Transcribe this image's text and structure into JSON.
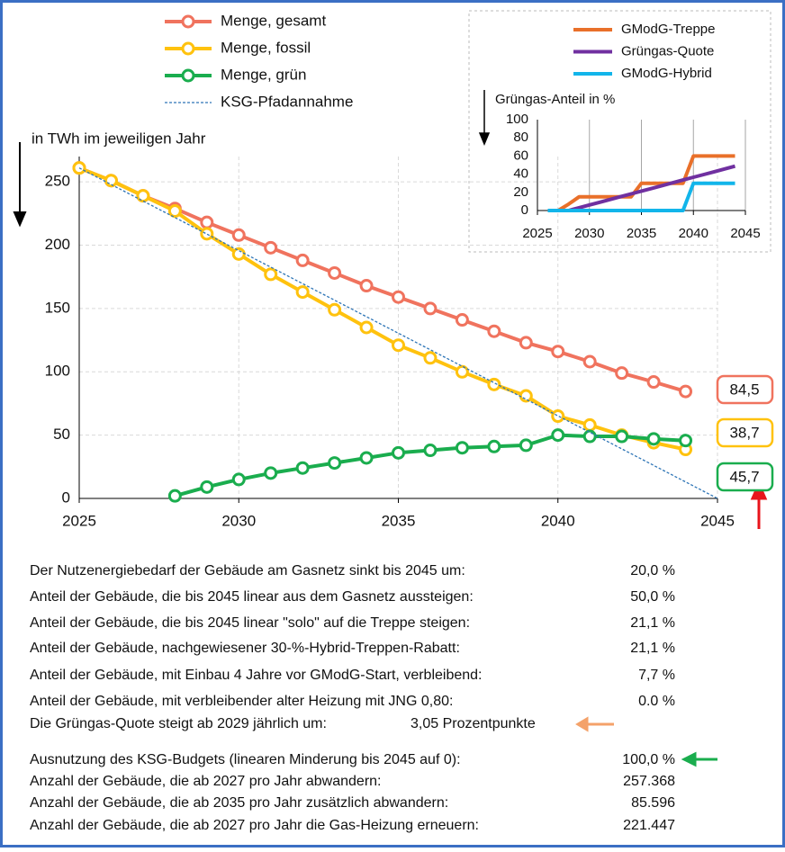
{
  "chart_data": [
    {
      "type": "line",
      "y_label": "in TWh im jeweiligen Jahr",
      "x": [
        2025,
        2026,
        2027,
        2028,
        2029,
        2030,
        2031,
        2032,
        2033,
        2034,
        2035,
        2036,
        2037,
        2038,
        2039,
        2040,
        2041,
        2042,
        2043,
        2044
      ],
      "series": [
        {
          "name": "Menge, gesamt",
          "color": "#f0735e",
          "marker": "circle",
          "values": [
            261,
            251,
            239,
            229,
            218,
            208,
            198,
            188,
            178,
            168,
            159,
            150,
            141,
            132,
            123,
            116,
            108,
            99,
            92,
            84.5
          ],
          "value_labels": [
            null,
            null,
            null,
            null,
            null,
            null,
            null,
            null,
            null,
            null,
            null,
            null,
            null,
            null,
            null,
            null,
            null,
            null,
            null,
            "84,5"
          ]
        },
        {
          "name": "Menge, fossil",
          "color": "#ffc20e",
          "marker": "circle",
          "values": [
            261,
            251,
            239,
            227,
            209,
            193,
            177,
            163,
            149,
            135,
            121,
            111,
            100,
            90,
            81,
            65,
            58,
            50,
            44,
            38.7
          ],
          "value_labels": [
            null,
            null,
            null,
            null,
            null,
            null,
            null,
            null,
            null,
            null,
            null,
            null,
            null,
            null,
            null,
            null,
            null,
            null,
            null,
            "38,7"
          ]
        },
        {
          "name": "Menge, grün",
          "color": "#1aad4e",
          "marker": "circle",
          "values": [
            null,
            null,
            null,
            2,
            9,
            15,
            20,
            24,
            28,
            32,
            36,
            38,
            40,
            41,
            42,
            50,
            49,
            49,
            47,
            45.7
          ],
          "value_labels": [
            null,
            null,
            null,
            null,
            null,
            null,
            null,
            null,
            null,
            null,
            null,
            null,
            null,
            null,
            null,
            null,
            null,
            null,
            null,
            "45,7"
          ]
        },
        {
          "name": "KSG-Pfadannahme",
          "color": "#2e75b6",
          "line_style": "dashed",
          "x": [
            2025,
            2045
          ],
          "values": [
            261,
            0
          ]
        }
      ],
      "xlim": [
        2025,
        2045
      ],
      "xticks": [
        2025,
        2030,
        2035,
        2040,
        2045
      ],
      "ylim": [
        0,
        270
      ],
      "yticks": [
        0,
        50,
        100,
        150,
        200,
        250
      ],
      "grid": "both"
    },
    {
      "type": "line",
      "y_label": "Grüngas-Anteil in %",
      "x": [
        2026,
        2027,
        2028,
        2029,
        2030,
        2031,
        2032,
        2033,
        2034,
        2035,
        2036,
        2037,
        2038,
        2039,
        2040,
        2041,
        2042,
        2043,
        2044
      ],
      "series": [
        {
          "name": "GModG-Treppe",
          "color": "#e9702a",
          "values": [
            0,
            0,
            7,
            15,
            15,
            15,
            15,
            15,
            15,
            30,
            30,
            30,
            30,
            30,
            60,
            60,
            60,
            60,
            60
          ]
        },
        {
          "name": "Grüngas-Quote",
          "color": "#7030a0",
          "values": [
            0,
            0,
            0,
            3.05,
            6.1,
            9.15,
            12.2,
            15.25,
            18.3,
            21.35,
            24.4,
            27.45,
            30.5,
            33.55,
            36.6,
            39.65,
            42.7,
            45.75,
            48.8
          ]
        },
        {
          "name": "GModG-Hybrid",
          "color": "#12b5ea",
          "values": [
            0,
            0,
            0,
            0,
            0,
            0,
            0,
            0,
            0,
            0,
            0,
            0,
            0,
            0,
            30,
            30,
            30,
            30,
            30
          ]
        }
      ],
      "xlim": [
        2025,
        2045
      ],
      "xticks": [
        2025,
        2030,
        2035,
        2040,
        2045
      ],
      "ylim": [
        0,
        100
      ],
      "yticks": [
        0,
        20,
        40,
        60,
        80,
        100
      ],
      "grid": "x"
    }
  ],
  "table": {
    "rows": [
      [
        "Der Nutzenergiebedarf der Gebäude am Gasnetz sinkt bis 2045 um:",
        "20,0 %"
      ],
      [
        "Anteil der Gebäude, die bis 2045 linear aus dem Gasnetz aussteigen:",
        "50,0 %"
      ],
      [
        "Anteil der Gebäude, die bis 2045 linear \"solo\" auf die Treppe steigen:",
        "21,1 %"
      ],
      [
        "Anteil der Gebäude, nachgewiesener 30-%-Hybrid-Treppen-Rabatt:",
        "21,1 %"
      ],
      [
        "Anteil der Gebäude, mit Einbau 4 Jahre vor GModG-Start, verbleibend:",
        "7,7 %"
      ],
      [
        "Anteil der Gebäude, mit verbleibender alter Heizung mit JNG 0,80:",
        "0.0 %"
      ],
      [
        "Die Grüngas-Quote steigt ab 2029 jährlich um:",
        "3,05 Prozentpunkte"
      ],
      [
        "Ausnutzung des KSG-Budgets (linearen Minderung  bis 2045 auf 0):",
        "100,0 %"
      ],
      [
        "Anzahl der Gebäude, die ab 2027  pro Jahr abwandern:",
        "257.368"
      ],
      [
        "Anzahl der Gebäude, die ab 2035  pro Jahr zusätzlich abwandern:",
        "85.596"
      ],
      [
        "Anzahl der Gebäude, die ab 2027  pro Jahr die Gas-Heizung erneuern:",
        "221.447"
      ]
    ]
  }
}
